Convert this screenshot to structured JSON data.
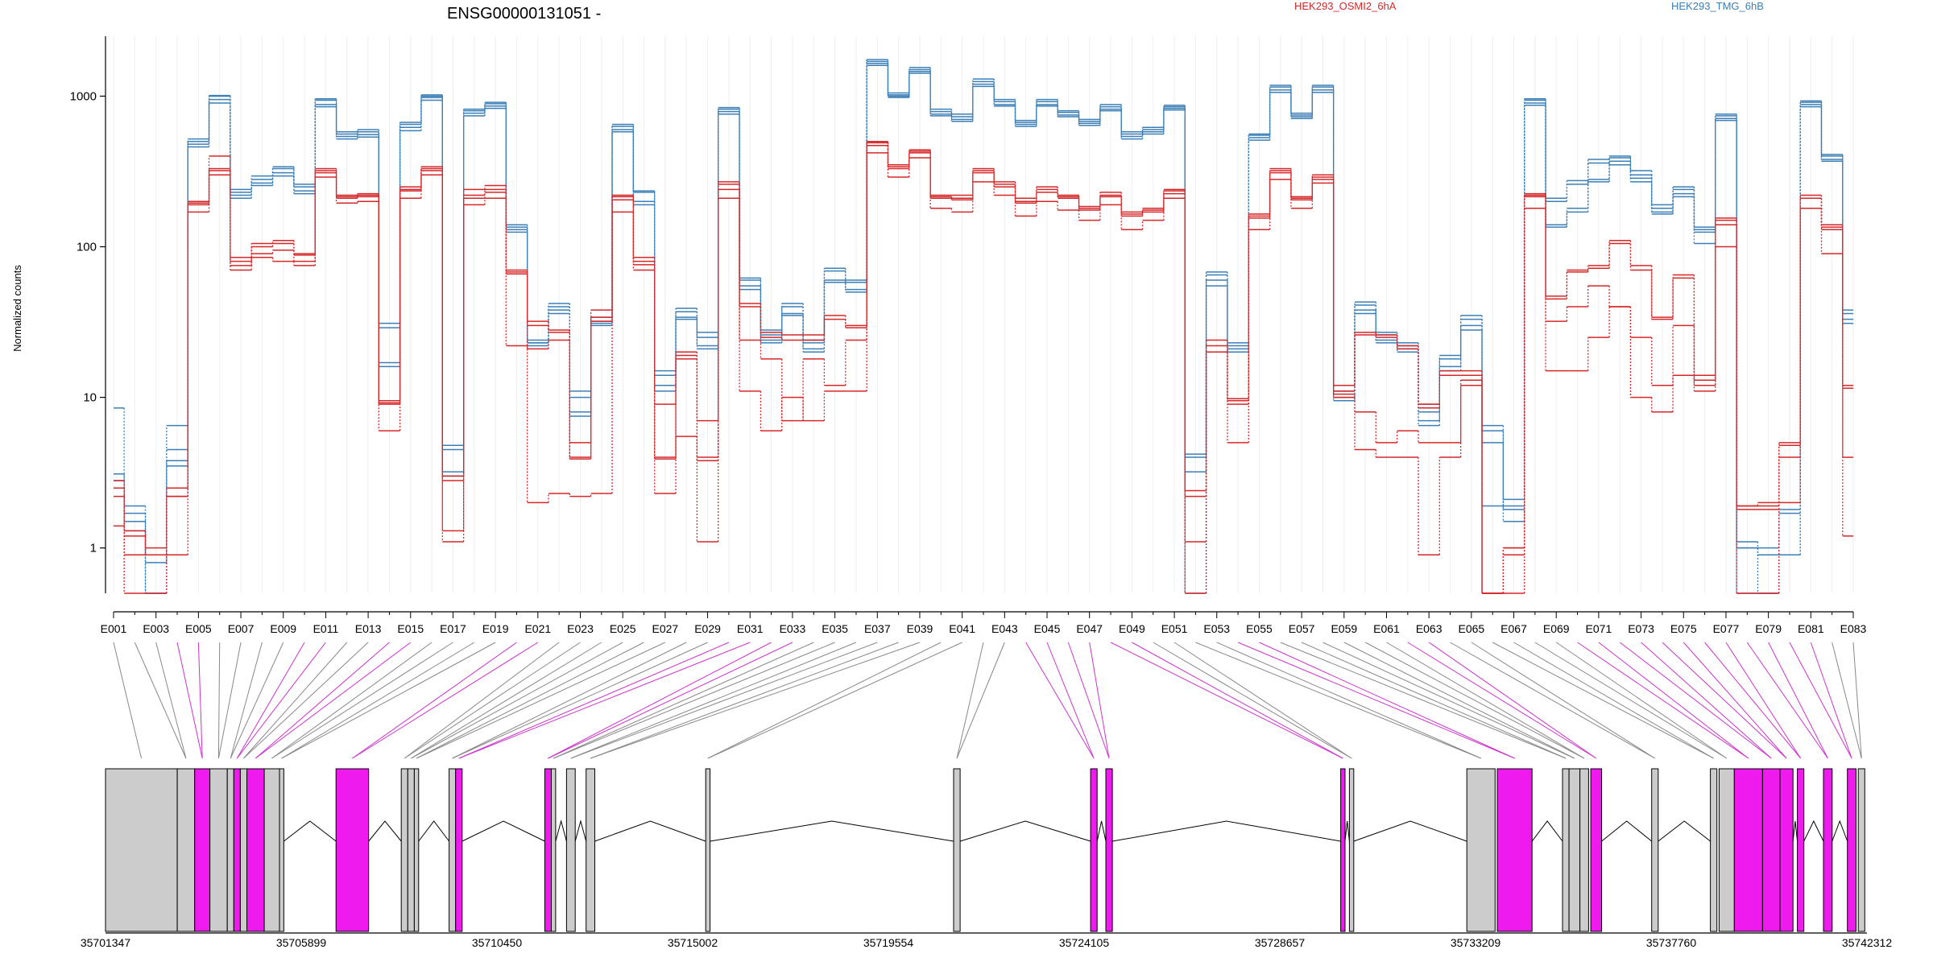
{
  "figure": {
    "title": "ENSG00000131051 -",
    "ylabel": "Normalized counts",
    "legend": [
      {
        "label": "HEK293_OSMI2_6hA",
        "color": "#d62728"
      },
      {
        "label": "HEK293_TMG_6hB",
        "color": "#3b7fb6"
      }
    ],
    "colors": {
      "red": "#d62728",
      "blue": "#3b7fb6",
      "exon_gray": "#cccccc",
      "exon_magenta": "#ee1aee",
      "connector_magenta": "#cc33cc",
      "connector_gray": "#888888"
    }
  },
  "chart_data": {
    "type": "line",
    "yscale": "log",
    "ylim": [
      0.5,
      2500
    ],
    "yticks": [
      1,
      10,
      100,
      1000
    ],
    "ytick_labels": [
      "1",
      "10",
      "100",
      "1000"
    ],
    "categories": [
      "E001",
      "E002",
      "E003",
      "E004",
      "E005",
      "E006",
      "E007",
      "E008",
      "E009",
      "E010",
      "E011",
      "E012",
      "E013",
      "E014",
      "E015",
      "E016",
      "E017",
      "E018",
      "E019",
      "E020",
      "E021",
      "E022",
      "E023",
      "E024",
      "E025",
      "E026",
      "E027",
      "E028",
      "E029",
      "E030",
      "E031",
      "E032",
      "E033",
      "E034",
      "E035",
      "E036",
      "E037",
      "E038",
      "E039",
      "E040",
      "E041",
      "E042",
      "E043",
      "E044",
      "E045",
      "E046",
      "E047",
      "E048",
      "E049",
      "E050",
      "E051",
      "E052",
      "E053",
      "E054",
      "E055",
      "E056",
      "E057",
      "E058",
      "E059",
      "E060",
      "E061",
      "E062",
      "E063",
      "E064",
      "E065",
      "E066",
      "E067",
      "E068",
      "E069",
      "E070",
      "E071",
      "E072",
      "E073",
      "E074",
      "E075",
      "E076",
      "E077",
      "E078",
      "E079",
      "E080",
      "E081",
      "E082",
      "E083"
    ],
    "xtick_labels": [
      "E001",
      "E003",
      "E005",
      "E007",
      "E009",
      "E011",
      "E013",
      "E015",
      "E017",
      "E019",
      "E021",
      "E023",
      "E025",
      "E027",
      "E029",
      "E031",
      "E033",
      "E035",
      "E037",
      "E039",
      "E041",
      "E043",
      "E045",
      "E047",
      "E049",
      "E051",
      "E053",
      "E055",
      "E057",
      "E059",
      "E061",
      "E063",
      "E065",
      "E067",
      "E069",
      "E071",
      "E073",
      "E075",
      "E077",
      "E079",
      "E081",
      "E083"
    ],
    "series": [
      {
        "group": "HEK293_TMG_6hB",
        "color": "#3b7fb6",
        "values": [
          3.1,
          1.7,
          0.9,
          4.5,
          500,
          1000,
          230,
          280,
          330,
          250,
          940,
          560,
          580,
          29,
          650,
          1000,
          4.5,
          800,
          890,
          135,
          23,
          40,
          10,
          32,
          630,
          230,
          14,
          37,
          25,
          820,
          60,
          26,
          40,
          23,
          69,
          58,
          1700,
          1020,
          1500,
          790,
          730,
          1250,
          920,
          670,
          920,
          780,
          680,
          850,
          560,
          600,
          850,
          4,
          65,
          22,
          550,
          1150,
          750,
          1150,
          11,
          41,
          26,
          22,
          8,
          18,
          33,
          6,
          1.9,
          940,
          140,
          180,
          280,
          390,
          300,
          180,
          240,
          130,
          740,
          1,
          1,
          1.8,
          910,
          400,
          36
        ]
      },
      {
        "group": "HEK293_TMG_6hB",
        "color": "#3b7fb6",
        "values": [
          2.8,
          1.5,
          0.8,
          3.8,
          480,
          950,
          220,
          265,
          310,
          235,
          880,
          540,
          555,
          17,
          620,
          980,
          3.2,
          770,
          860,
          130,
          24,
          38,
          8,
          31,
          600,
          200,
          12,
          34,
          22,
          790,
          55,
          24,
          36,
          21,
          60,
          52,
          1650,
          1000,
          1460,
          760,
          700,
          1200,
          880,
          650,
          880,
          750,
          660,
          820,
          540,
          580,
          830,
          3.2,
          60,
          21,
          530,
          1100,
          730,
          1100,
          10,
          38,
          24,
          21,
          7,
          16,
          30,
          5,
          1.8,
          900,
          135,
          170,
          270,
          370,
          285,
          170,
          225,
          125,
          710,
          1,
          0.9,
          1.7,
          880,
          380,
          33
        ]
      },
      {
        "group": "HEK293_TMG_6hB",
        "color": "#3b7fb6",
        "values": [
          8.5,
          1.9,
          0.5,
          6.5,
          520,
          1010,
          240,
          295,
          340,
          260,
          960,
          580,
          600,
          31,
          670,
          1020,
          4.8,
          820,
          910,
          140,
          22,
          42,
          11,
          34,
          650,
          235,
          15,
          39,
          27,
          840,
          62,
          28,
          42,
          24,
          72,
          60,
          1750,
          1050,
          1550,
          820,
          760,
          1300,
          950,
          690,
          950,
          800,
          700,
          880,
          580,
          620,
          870,
          4.2,
          68,
          23,
          560,
          1180,
          770,
          1180,
          12,
          43,
          27,
          23,
          9,
          19,
          35,
          6.5,
          2.1,
          960,
          210,
          275,
          380,
          400,
          320,
          190,
          250,
          135,
          760,
          1.1,
          0.5,
          0.9,
          930,
          410,
          38
        ]
      },
      {
        "group": "HEK293_TMG_6hB",
        "color": "#3b7fb6",
        "values": [
          2.5,
          1.3,
          0.5,
          3.5,
          460,
          900,
          210,
          255,
          295,
          225,
          850,
          520,
          535,
          16,
          590,
          940,
          3,
          740,
          830,
          125,
          23,
          36,
          7.5,
          30,
          580,
          190,
          11,
          33,
          21,
          760,
          52,
          23,
          35,
          20,
          58,
          50,
          1600,
          980,
          1420,
          740,
          680,
          1160,
          860,
          630,
          860,
          730,
          640,
          800,
          520,
          560,
          810,
          0.5,
          55,
          20,
          510,
          1060,
          710,
          1060,
          9.5,
          36,
          23,
          20,
          6.5,
          15,
          28,
          1.9,
          1.5,
          870,
          200,
          260,
          360,
          350,
          270,
          165,
          215,
          105,
          690,
          0.5,
          0.5,
          0.9,
          850,
          370,
          31
        ]
      },
      {
        "group": "HEK293_OSMI2_6hA",
        "color": "#d62728",
        "values": [
          1.4,
          0.9,
          0.9,
          2.2,
          195,
          330,
          85,
          105,
          110,
          90,
          320,
          215,
          220,
          9.2,
          240,
          330,
          3,
          220,
          240,
          68,
          32,
          28,
          4,
          34,
          215,
          80,
          4,
          20,
          4,
          270,
          42,
          27,
          26,
          26,
          35,
          30,
          490,
          340,
          430,
          215,
          210,
          320,
          260,
          200,
          240,
          215,
          180,
          220,
          165,
          175,
          235,
          1.1,
          24,
          9.5,
          160,
          320,
          210,
          290,
          12,
          27,
          26,
          22,
          9,
          15,
          15,
          0.5,
          1,
          225,
          47,
          70,
          75,
          110,
          75,
          34,
          65,
          14,
          155,
          1.9,
          1.9,
          5,
          220,
          140,
          12
        ]
      },
      {
        "group": "HEK293_OSMI2_6hA",
        "color": "#d62728",
        "values": [
          2.2,
          1.2,
          0.9,
          2.2,
          190,
          320,
          80,
          100,
          105,
          88,
          310,
          210,
          215,
          9,
          235,
          320,
          2.8,
          210,
          230,
          66,
          30,
          27,
          3.9,
          32,
          205,
          76,
          3.9,
          19,
          3.8,
          260,
          40,
          25,
          24,
          24,
          33,
          29,
          470,
          330,
          420,
          210,
          205,
          310,
          250,
          195,
          230,
          210,
          175,
          215,
          160,
          170,
          225,
          2.2,
          22,
          9,
          155,
          310,
          205,
          280,
          11,
          26,
          25,
          21,
          8.5,
          14,
          14,
          0.5,
          0.9,
          215,
          45,
          68,
          72,
          105,
          70,
          33,
          62,
          13,
          150,
          1.8,
          1.8,
          4.8,
          210,
          135,
          11.5
        ]
      },
      {
        "group": "HEK293_OSMI2_6hA",
        "color": "#d62728",
        "values": [
          2.5,
          1.3,
          1,
          2.5,
          200,
          400,
          70,
          90,
          95,
          80,
          330,
          220,
          225,
          9.5,
          250,
          340,
          1.3,
          240,
          255,
          70,
          21,
          24,
          5,
          38,
          220,
          85,
          9,
          18,
          7,
          240,
          11,
          6,
          10,
          7,
          11,
          11,
          500,
          350,
          440,
          220,
          220,
          330,
          270,
          210,
          250,
          220,
          185,
          230,
          170,
          180,
          240,
          2.4,
          20,
          9.8,
          165,
          330,
          215,
          300,
          10,
          8,
          5,
          6,
          5,
          5,
          13,
          0.5,
          1,
          220,
          15,
          15,
          25,
          40,
          25,
          12,
          14,
          12,
          140,
          0.5,
          0.5,
          2,
          210,
          130,
          4
        ]
      },
      {
        "group": "HEK293_OSMI2_6hA",
        "color": "#d62728",
        "values": [
          2.8,
          0.5,
          0.5,
          0.9,
          170,
          300,
          75,
          85,
          80,
          75,
          290,
          195,
          200,
          6,
          210,
          300,
          1.1,
          190,
          210,
          22,
          2,
          2.3,
          2.2,
          2.3,
          170,
          70,
          2.3,
          5.5,
          1.1,
          210,
          24,
          18,
          7,
          18,
          12,
          24,
          420,
          290,
          390,
          180,
          170,
          270,
          220,
          160,
          200,
          175,
          150,
          190,
          130,
          150,
          210,
          0.5,
          20,
          5,
          130,
          280,
          180,
          265,
          10.5,
          4.5,
          4,
          4,
          0.9,
          4,
          12,
          0.5,
          0.5,
          180,
          32,
          40,
          55,
          40,
          10,
          8,
          30,
          11,
          100,
          1.9,
          2,
          4,
          180,
          90,
          1.2
        ]
      }
    ]
  },
  "gene_model": {
    "axis_labels": [
      "35701347",
      "35705899",
      "35710450",
      "35715002",
      "35719554",
      "35724105",
      "35728657",
      "35733209",
      "35737760",
      "35742312"
    ],
    "axis_range": [
      35701347,
      35742312
    ]
  }
}
